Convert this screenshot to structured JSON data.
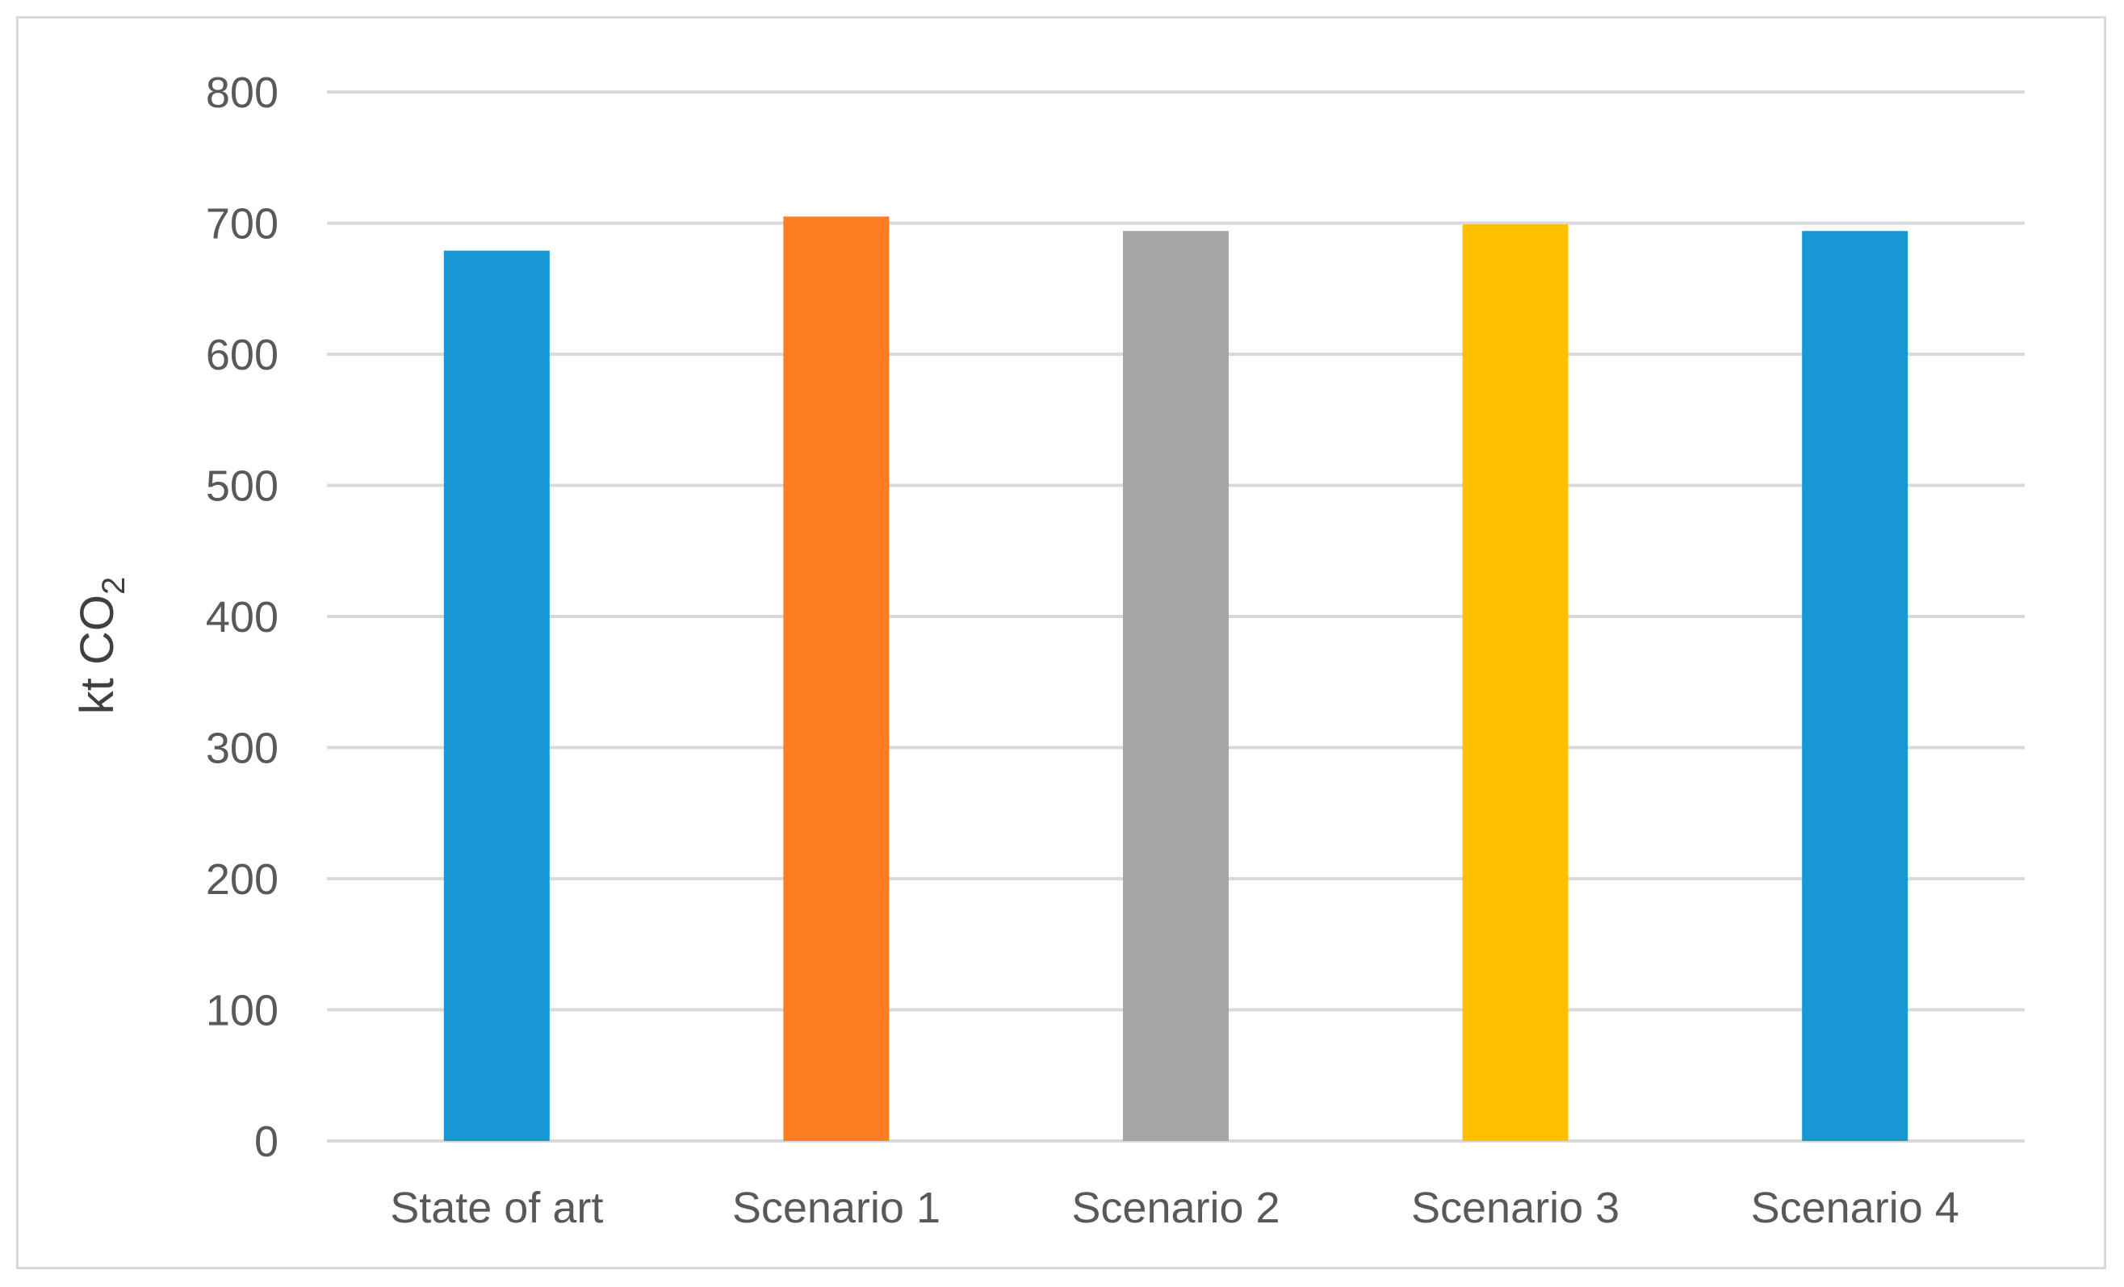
{
  "chart_data": {
    "type": "bar",
    "categories": [
      "State of art",
      "Scenario 1",
      "Scenario 2",
      "Scenario 3",
      "Scenario 4"
    ],
    "values": [
      679,
      705,
      694,
      699,
      694
    ],
    "colors": [
      "#1798d5",
      "#fe7c22",
      "#a6a6a6",
      "#ffc000",
      "#1798d5"
    ],
    "ylabel": "kt CO",
    "ylabel_subscript": "2",
    "ylim": [
      0,
      800
    ],
    "yticks": [
      0,
      100,
      200,
      300,
      400,
      500,
      600,
      700,
      800
    ],
    "grid": true,
    "legend": "none"
  }
}
